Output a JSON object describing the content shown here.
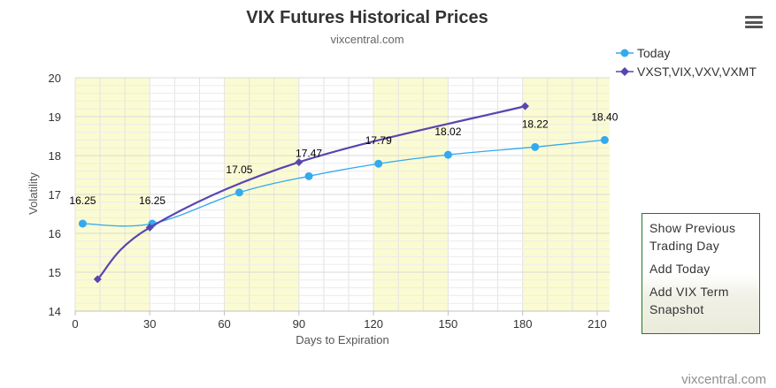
{
  "chart_data": {
    "type": "line",
    "title": "VIX Futures Historical Prices",
    "subtitle": "vixcentral.com",
    "xlabel": "Days to Expiration",
    "ylabel": "Volatility",
    "xlim": [
      0,
      215
    ],
    "ylim": [
      14,
      20
    ],
    "x_ticks": [
      "0",
      "30",
      "60",
      "90",
      "120",
      "150",
      "180",
      "210"
    ],
    "y_ticks": [
      "14",
      "15",
      "16",
      "17",
      "18",
      "19",
      "20"
    ],
    "grid": true,
    "legend_position": "top-right",
    "shaded_x_bands": [
      [
        0,
        30
      ],
      [
        60,
        90
      ],
      [
        120,
        150
      ],
      [
        180,
        215
      ]
    ],
    "series": [
      {
        "name": "Today",
        "color": "#33aaee",
        "marker": "circle",
        "x": [
          3,
          31,
          66,
          94,
          122,
          150,
          185,
          213
        ],
        "y": [
          16.25,
          16.25,
          17.05,
          17.47,
          17.79,
          18.02,
          18.22,
          18.4
        ],
        "labels": [
          "16.25",
          "16.25",
          "17.05",
          "17.47",
          "17.79",
          "18.02",
          "18.22",
          "18.40"
        ]
      },
      {
        "name": "VXST,VIX,VXV,VXMT",
        "color": "#5a45b0",
        "marker": "diamond",
        "x": [
          9,
          30,
          90,
          181
        ],
        "y": [
          14.82,
          16.15,
          17.83,
          19.27
        ]
      }
    ]
  },
  "side_panel": {
    "items": [
      "Show Previous Trading Day",
      "Add Today",
      "Add VIX Term Snapshot"
    ]
  },
  "credits": "vixcentral.com",
  "menu_icon": "hamburger-menu-icon"
}
